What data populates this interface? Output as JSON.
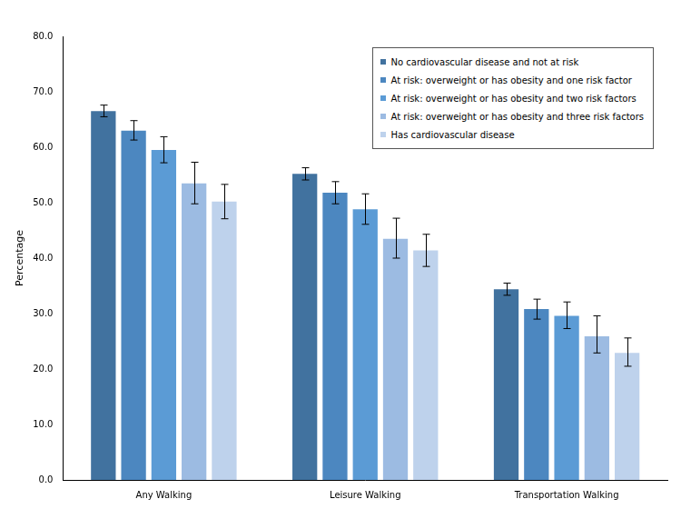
{
  "chart_data": {
    "type": "bar",
    "categories": [
      "Any Walking",
      "Leisure Walking",
      "Transportation Walking"
    ],
    "series": [
      {
        "name": "No cardiovascular disease and not at risk",
        "color": "#41729f",
        "values": [
          66.5,
          55.2,
          34.4
        ],
        "error_low": [
          65.5,
          54.1,
          33.3
        ],
        "error_high": [
          67.6,
          56.3,
          35.5
        ]
      },
      {
        "name": "At risk: overweight or has obesity and one risk factor",
        "color": "#4c87c0",
        "values": [
          63.0,
          51.8,
          30.8
        ],
        "error_low": [
          61.3,
          49.8,
          29.0
        ],
        "error_high": [
          64.8,
          53.8,
          32.6
        ]
      },
      {
        "name": "At risk: overweight or has obesity and two risk factors",
        "color": "#5b9bd5",
        "values": [
          59.5,
          48.8,
          29.6
        ],
        "error_low": [
          57.2,
          46.1,
          27.3
        ],
        "error_high": [
          61.9,
          51.6,
          32.1
        ]
      },
      {
        "name": "At risk: overweight or has obesity and three risk factors",
        "color": "#9cbbe2",
        "values": [
          53.5,
          43.5,
          25.9
        ],
        "error_low": [
          49.8,
          40.0,
          22.9
        ],
        "error_high": [
          57.3,
          47.2,
          29.6
        ]
      },
      {
        "name": "Has cardiovascular disease",
        "color": "#bed2ec",
        "values": [
          50.2,
          41.4,
          22.9
        ],
        "error_low": [
          47.1,
          38.5,
          20.5
        ],
        "error_high": [
          53.3,
          44.3,
          25.6
        ]
      }
    ],
    "ylabel": "Percentage",
    "ylim": [
      0,
      80
    ],
    "yticks": [
      {
        "value": 0,
        "label": "0.0"
      },
      {
        "value": 10,
        "label": "10.0"
      },
      {
        "value": 20,
        "label": "20.0"
      },
      {
        "value": 30,
        "label": "30.0"
      },
      {
        "value": 40,
        "label": "40.0"
      },
      {
        "value": 50,
        "label": "50.0"
      },
      {
        "value": 60,
        "label": "60.0"
      },
      {
        "value": 70,
        "label": "70.0"
      },
      {
        "value": 80,
        "label": "80.0"
      }
    ],
    "grid": false,
    "legend": "upper right"
  }
}
